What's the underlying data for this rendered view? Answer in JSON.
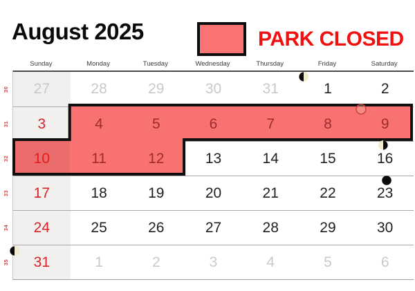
{
  "header": {
    "title": "August 2025",
    "legend_label": "PARK CLOSED"
  },
  "colors": {
    "closed_fill": "#f87272",
    "closed_border": "#0f0f0f",
    "legend_swatch_fill": "#fa7474",
    "legend_text": "#f10f0f",
    "title_text": "#0a0a0a",
    "sunday_text": "#d8232a",
    "closed_day_text": "#9e2b2b",
    "closed_sunday_text": "#e31d1d",
    "outside_month_text": "#c9c9c9",
    "day_text": "#1f1f1f",
    "week_number_text": "#bf4a4a",
    "sunday_column_bg": "#f1f0ee",
    "moon_lit": "#f3ecc8",
    "moon_dark": "#0a0a0a"
  },
  "icons": [
    "legend-swatch",
    "moon-first-quarter-icon",
    "moon-full-icon",
    "moon-last-quarter-icon",
    "moon-new-icon"
  ],
  "calendar": {
    "day_names": [
      "Sunday",
      "Monday",
      "Tuesday",
      "Wednesday",
      "Thursday",
      "Friday",
      "Saturday"
    ],
    "week_numbers": [
      "30",
      "31",
      "32",
      "33",
      "34",
      "35"
    ],
    "weeks": [
      {
        "week": "30",
        "days": [
          {
            "n": "27",
            "type": "outside"
          },
          {
            "n": "28",
            "type": "outside"
          },
          {
            "n": "29",
            "type": "outside"
          },
          {
            "n": "30",
            "type": "outside"
          },
          {
            "n": "31",
            "type": "outside"
          },
          {
            "n": "1",
            "type": "current"
          },
          {
            "n": "2",
            "type": "current"
          }
        ]
      },
      {
        "week": "31",
        "days": [
          {
            "n": "3",
            "type": "sunday"
          },
          {
            "n": "4",
            "type": "closed"
          },
          {
            "n": "5",
            "type": "closed"
          },
          {
            "n": "6",
            "type": "closed"
          },
          {
            "n": "7",
            "type": "closed"
          },
          {
            "n": "8",
            "type": "closed"
          },
          {
            "n": "9",
            "type": "closed"
          }
        ]
      },
      {
        "week": "32",
        "days": [
          {
            "n": "10",
            "type": "closed-sunday"
          },
          {
            "n": "11",
            "type": "closed"
          },
          {
            "n": "12",
            "type": "closed"
          },
          {
            "n": "13",
            "type": "current"
          },
          {
            "n": "14",
            "type": "current"
          },
          {
            "n": "15",
            "type": "current"
          },
          {
            "n": "16",
            "type": "current"
          }
        ]
      },
      {
        "week": "33",
        "days": [
          {
            "n": "17",
            "type": "sunday"
          },
          {
            "n": "18",
            "type": "current"
          },
          {
            "n": "19",
            "type": "current"
          },
          {
            "n": "20",
            "type": "current"
          },
          {
            "n": "21",
            "type": "current"
          },
          {
            "n": "22",
            "type": "current"
          },
          {
            "n": "23",
            "type": "current"
          }
        ]
      },
      {
        "week": "34",
        "days": [
          {
            "n": "24",
            "type": "sunday"
          },
          {
            "n": "25",
            "type": "current"
          },
          {
            "n": "26",
            "type": "current"
          },
          {
            "n": "27",
            "type": "current"
          },
          {
            "n": "28",
            "type": "current"
          },
          {
            "n": "29",
            "type": "current"
          },
          {
            "n": "30",
            "type": "current"
          }
        ]
      },
      {
        "week": "35",
        "days": [
          {
            "n": "31",
            "type": "sunday"
          },
          {
            "n": "1",
            "type": "outside"
          },
          {
            "n": "2",
            "type": "outside"
          },
          {
            "n": "3",
            "type": "outside"
          },
          {
            "n": "4",
            "type": "outside"
          },
          {
            "n": "5",
            "type": "outside"
          },
          {
            "n": "6",
            "type": "outside"
          }
        ]
      }
    ],
    "closed_days": [
      "4",
      "5",
      "6",
      "7",
      "8",
      "9",
      "10",
      "11",
      "12"
    ],
    "moon_phases": [
      {
        "day": "1",
        "phase": "first-quarter"
      },
      {
        "day": "9",
        "phase": "full"
      },
      {
        "day": "16",
        "phase": "last-quarter"
      },
      {
        "day": "23",
        "phase": "new"
      },
      {
        "day": "31",
        "phase": "first-quarter"
      }
    ]
  }
}
